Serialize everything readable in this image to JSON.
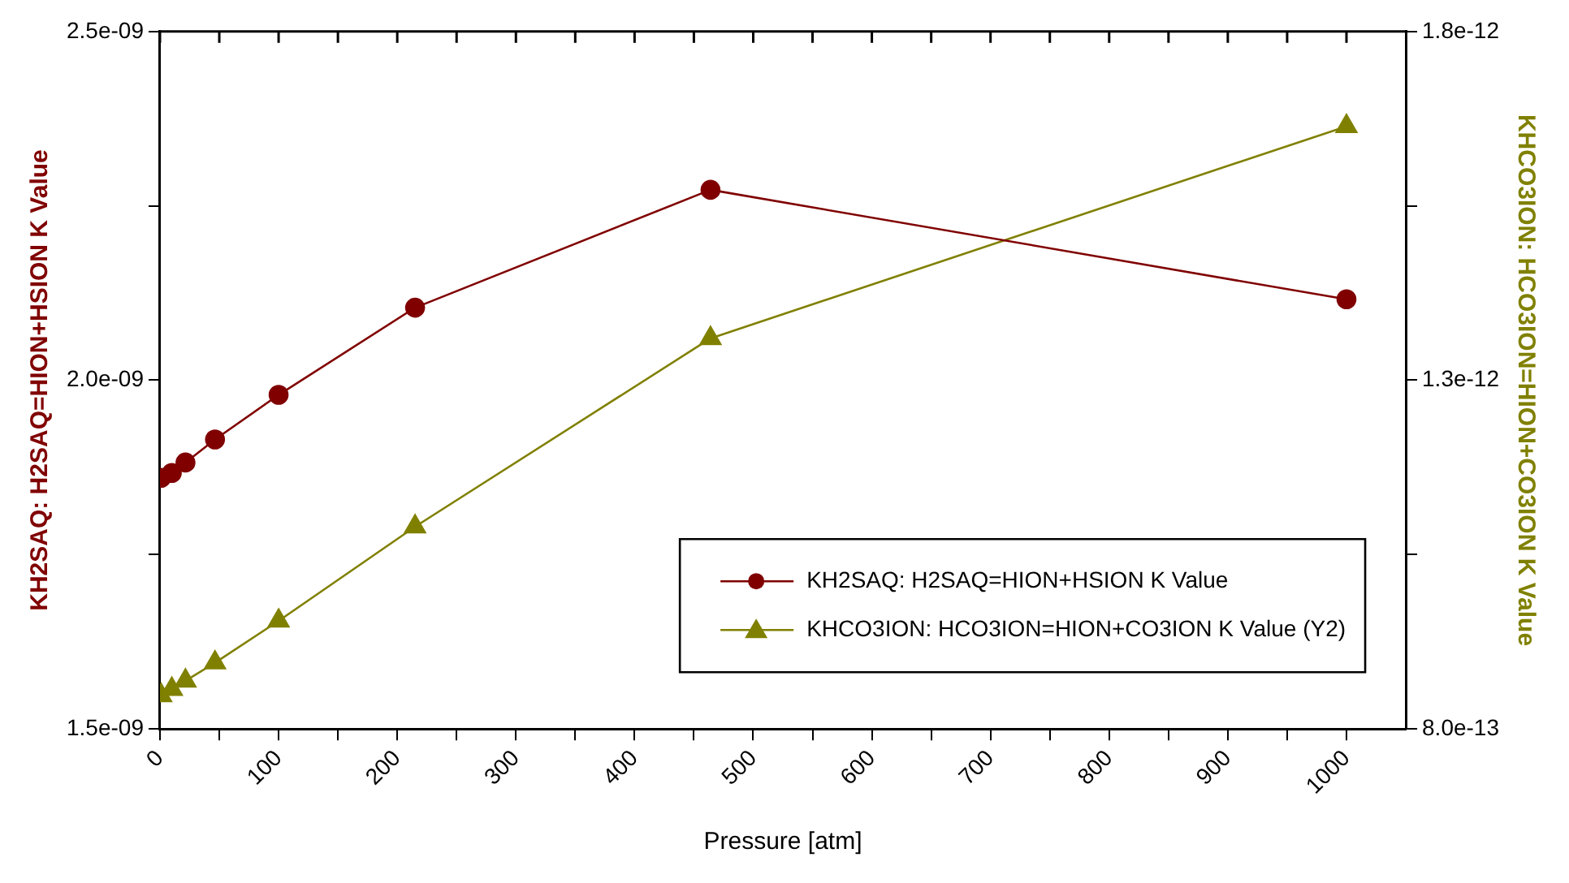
{
  "chart_data": {
    "type": "line",
    "xlabel": "Pressure [atm]",
    "ylabel": "KH2SAQ: H2SAQ=HION+HSION K Value",
    "y2label": "KHCO3ION: HCO3ION=HION+CO3ION K Value",
    "x": [
      1,
      10,
      21.5,
      46.4,
      100,
      215,
      464,
      1000
    ],
    "series": [
      {
        "name": "KH2SAQ: H2SAQ=HION+HSION K Value",
        "color": "#800000",
        "marker": "circle",
        "values": [
          1.86e-09,
          1.867e-09,
          1.882e-09,
          1.915e-09,
          1.979e-09,
          2.104e-09,
          2.273e-09,
          2.116e-09
        ]
      },
      {
        "name": "KHCO3ION: HCO3ION=HION+CO3ION K Value (Y2)",
        "color": "#808000",
        "marker": "triangle",
        "axis": "y2",
        "values": [
          8.48e-13,
          8.57e-13,
          8.69e-13,
          8.95e-13,
          9.55e-13,
          1.09e-12,
          1.36e-12,
          1.664e-12
        ]
      }
    ],
    "xlim": [
      0,
      1050
    ],
    "xticks": [
      0,
      {
        "value": 50,
        "label": null
      },
      100,
      {
        "value": 150,
        "label": null
      },
      200,
      {
        "value": 250,
        "label": null
      },
      300,
      {
        "value": 350,
        "label": null
      },
      400,
      {
        "value": 450,
        "label": null
      },
      500,
      {
        "value": 550,
        "label": null
      },
      600,
      {
        "value": 650,
        "label": null
      },
      700,
      {
        "value": 750,
        "label": null
      },
      800,
      {
        "value": 850,
        "label": null
      },
      900,
      {
        "value": 950,
        "label": null
      },
      1000
    ],
    "ylim": [
      1.5e-09,
      2.5e-09
    ],
    "yticks": [
      {
        "value": 1.5e-09,
        "label": "1.5e-09"
      },
      {
        "value": 1.75e-09,
        "label": null
      },
      {
        "value": 2e-09,
        "label": "2.0e-09"
      },
      {
        "value": 2.25e-09,
        "label": null
      },
      {
        "value": 2.5e-09,
        "label": "2.5e-09"
      }
    ],
    "y2lim": [
      8e-13,
      1.8e-12
    ],
    "y2ticks": [
      {
        "value": 8e-13,
        "label": "8.0e-13"
      },
      {
        "value": 1.05e-12,
        "label": null
      },
      {
        "value": 1.3e-12,
        "label": "1.3e-12"
      },
      {
        "value": 1.55e-12,
        "label": null
      },
      {
        "value": 1.8e-12,
        "label": "1.8e-12"
      }
    ],
    "grid": false,
    "legend": "bottom right"
  }
}
